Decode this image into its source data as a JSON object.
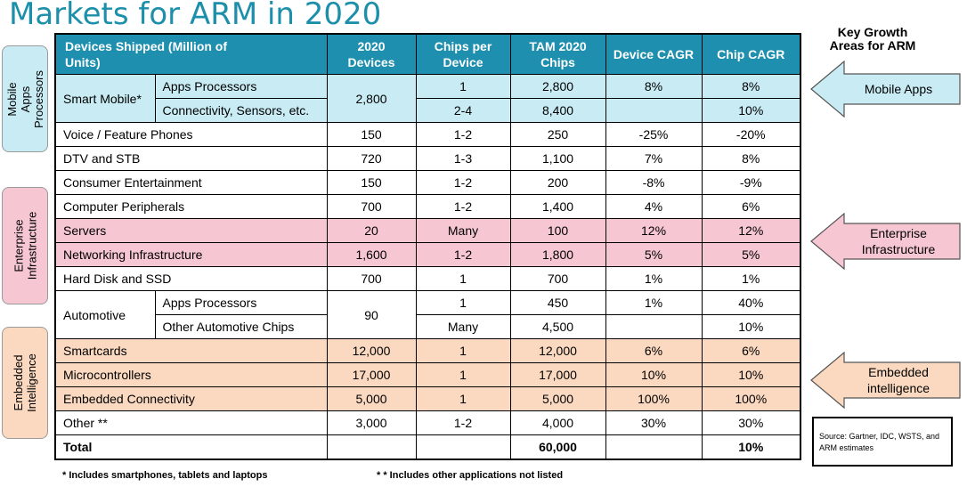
{
  "title": "Markets for ARM in 2020",
  "side_tabs": {
    "mobile": "Mobile Apps Processors",
    "enterprise": "Enterprise Infrastructure",
    "embedded": "Embedded Intelligence"
  },
  "colors": {
    "header": "#1e8fae",
    "title": "#1c8faa",
    "mobile": "#c8ebf4",
    "enterprise": "#f6c6d3",
    "embedded": "#fad9c0"
  },
  "table": {
    "headers": {
      "devices": "Devices Shipped (Million of Units)",
      "devices_2020": "2020 Devices",
      "chips_per_device": "Chips per Device",
      "tam": "TAM 2020 Chips",
      "device_cagr": "Device CAGR",
      "chip_cagr": "Chip CAGR"
    },
    "smart_mobile": {
      "label": "Smart Mobile*",
      "devices": "2,800",
      "sub1": {
        "label": "Apps Processors",
        "chips": "1",
        "tam": "2,800",
        "dcagr": "8%",
        "ccagr": "8%"
      },
      "sub2": {
        "label": "Connectivity, Sensors, etc.",
        "chips": "2-4",
        "tam": "8,400",
        "dcagr": "",
        "ccagr": "10%"
      }
    },
    "voice": {
      "label": "Voice / Feature Phones",
      "devices": "150",
      "chips": "1-2",
      "tam": "250",
      "dcagr": "-25%",
      "ccagr": "-20%"
    },
    "dtv": {
      "label": "DTV and STB",
      "devices": "720",
      "chips": "1-3",
      "tam": "1,100",
      "dcagr": "7%",
      "ccagr": "8%"
    },
    "consumer": {
      "label": "Consumer Entertainment",
      "devices": "150",
      "chips": "1-2",
      "tam": "200",
      "dcagr": "-8%",
      "ccagr": "-9%"
    },
    "peripherals": {
      "label": "Computer Peripherals",
      "devices": "700",
      "chips": "1-2",
      "tam": "1,400",
      "dcagr": "4%",
      "ccagr": "6%"
    },
    "servers": {
      "label": "Servers",
      "devices": "20",
      "chips": "Many",
      "tam": "100",
      "dcagr": "12%",
      "ccagr": "12%"
    },
    "networking": {
      "label": "Networking Infrastructure",
      "devices": "1,600",
      "chips": "1-2",
      "tam": "1,800",
      "dcagr": "5%",
      "ccagr": "5%"
    },
    "harddisk": {
      "label": "Hard Disk and SSD",
      "devices": "700",
      "chips": "1",
      "tam": "700",
      "dcagr": "1%",
      "ccagr": "1%"
    },
    "automotive": {
      "label": "Automotive",
      "devices": "90",
      "sub1": {
        "label": "Apps Processors",
        "chips": "1",
        "tam": "450",
        "dcagr": "1%",
        "ccagr": "40%"
      },
      "sub2": {
        "label": "Other Automotive Chips",
        "chips": "Many",
        "tam": "4,500",
        "dcagr": "",
        "ccagr": "10%"
      }
    },
    "smartcards": {
      "label": "Smartcards",
      "devices": "12,000",
      "chips": "1",
      "tam": "12,000",
      "dcagr": "6%",
      "ccagr": "6%"
    },
    "microcontrollers": {
      "label": "Microcontrollers",
      "devices": "17,000",
      "chips": "1",
      "tam": "17,000",
      "dcagr": "10%",
      "ccagr": "10%"
    },
    "embedded_conn": {
      "label": "Embedded Connectivity",
      "devices": "5,000",
      "chips": "1",
      "tam": "5,000",
      "dcagr": "100%",
      "ccagr": "100%"
    },
    "other": {
      "label": "Other **",
      "devices": "3,000",
      "chips": "1-2",
      "tam": "4,000",
      "dcagr": "30%",
      "ccagr": "30%"
    },
    "total": {
      "label": "Total",
      "tam": "60,000",
      "ccagr": "10%"
    }
  },
  "key_growth": {
    "title": "Key Growth Areas for ARM",
    "mobile": "Mobile Apps",
    "enterprise": "Enterprise Infrastructure",
    "embedded": "Embedded intelligence"
  },
  "source": "Source: Gartner, IDC, WSTS, and ARM estimates",
  "footnotes": {
    "f1": "* Includes smartphones, tablets and laptops",
    "f2": "* * Includes other applications not listed"
  }
}
